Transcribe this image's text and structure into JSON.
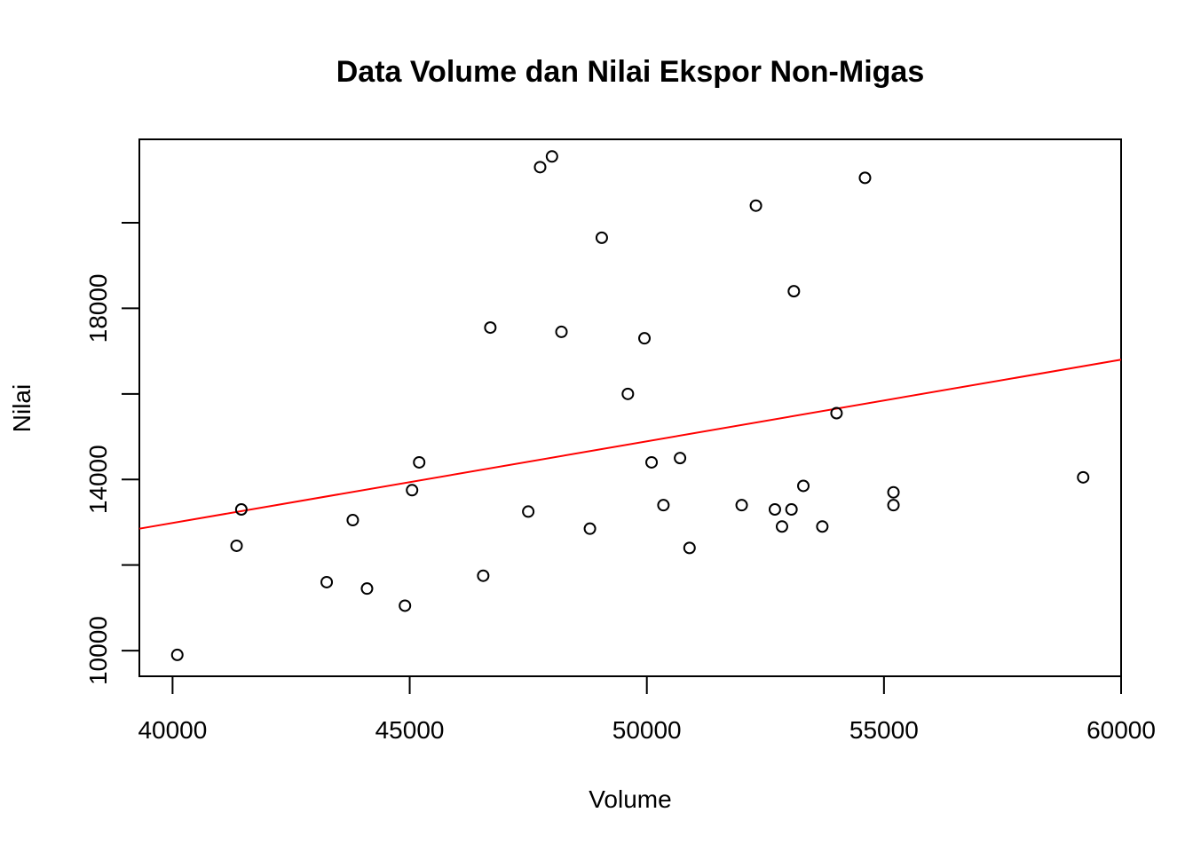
{
  "chart_data": {
    "type": "scatter",
    "title": "Data Volume dan Nilai Ekspor Non-Migas",
    "xlabel": "Volume",
    "ylabel": "Nilai",
    "xlim": [
      39300,
      60000
    ],
    "ylim": [
      9400,
      21950
    ],
    "x_ticks": [
      40000,
      45000,
      50000,
      55000,
      60000
    ],
    "y_ticks": [
      10000,
      14000,
      18000
    ],
    "grid": false,
    "legend": "none",
    "point_color": "#000000",
    "points": [
      {
        "x": 40100,
        "y": 9900
      },
      {
        "x": 41350,
        "y": 12450
      },
      {
        "x": 41450,
        "y": 13300
      },
      {
        "x": 43250,
        "y": 11600
      },
      {
        "x": 43800,
        "y": 13050
      },
      {
        "x": 44100,
        "y": 11450
      },
      {
        "x": 44900,
        "y": 11050
      },
      {
        "x": 45050,
        "y": 13750
      },
      {
        "x": 45200,
        "y": 14400
      },
      {
        "x": 46550,
        "y": 11750
      },
      {
        "x": 46700,
        "y": 17550
      },
      {
        "x": 47500,
        "y": 13250
      },
      {
        "x": 47750,
        "y": 21300
      },
      {
        "x": 48000,
        "y": 21550
      },
      {
        "x": 48200,
        "y": 17450
      },
      {
        "x": 48800,
        "y": 12850
      },
      {
        "x": 49050,
        "y": 19650
      },
      {
        "x": 49600,
        "y": 16000
      },
      {
        "x": 49950,
        "y": 17300
      },
      {
        "x": 50100,
        "y": 14400
      },
      {
        "x": 50350,
        "y": 13400
      },
      {
        "x": 50700,
        "y": 14500
      },
      {
        "x": 50900,
        "y": 12400
      },
      {
        "x": 52000,
        "y": 13400
      },
      {
        "x": 52300,
        "y": 20400
      },
      {
        "x": 52700,
        "y": 13300
      },
      {
        "x": 52850,
        "y": 12900
      },
      {
        "x": 53050,
        "y": 13300
      },
      {
        "x": 53100,
        "y": 18400
      },
      {
        "x": 53300,
        "y": 13850
      },
      {
        "x": 53700,
        "y": 12900
      },
      {
        "x": 54000,
        "y": 15550
      },
      {
        "x": 54600,
        "y": 21050
      },
      {
        "x": 55200,
        "y": 13700
      },
      {
        "x": 55200,
        "y": 13400
      },
      {
        "x": 59200,
        "y": 14050
      }
    ],
    "regression_line": {
      "color": "#ff0000",
      "start": {
        "x": 39300,
        "y": 12850
      },
      "end": {
        "x": 60000,
        "y": 16800
      }
    }
  }
}
